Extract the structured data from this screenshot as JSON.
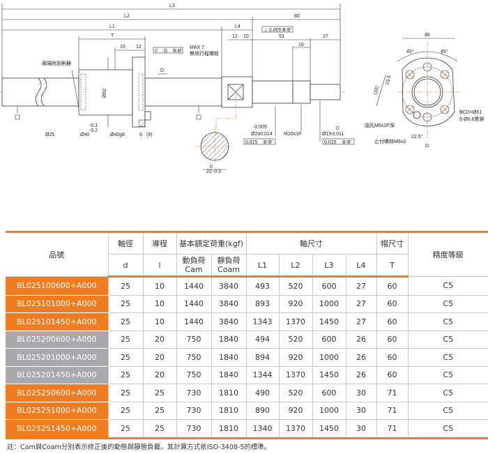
{
  "drawing": {
    "dims": {
      "L3": "L3",
      "L2": "L2",
      "L1": "L1",
      "L4": "L4",
      "T": "T",
      "d15": "15",
      "d12a": "12",
      "d12b": "12",
      "d10": "10",
      "d80": "80",
      "d53": "53",
      "d27": "27",
      "d16": "16",
      "d48": "48",
      "max7": "MAX 7",
      "D": "D",
      "phi62": "Ø62",
      "phi25": "Ø25",
      "phi40": "Ø40",
      "tol40": "-0.1",
      "tol40b": "-0.2",
      "phi40g6": "Ø40g6",
      "d6": "6",
      "d9": "(9)",
      "d22": "22",
      "tol22a": "0",
      "tol22b": "-0.3",
      "phi20": "Ø20",
      "tol20a": "-0.005",
      "tol20b": "-0.014",
      "m20": "M20x1P",
      "phi15": "Ø15",
      "tol15a": "0",
      "tol15b": "-0.011",
      "a45a": "45°",
      "a45b": "45°",
      "d32": "(32)",
      "d235": "23.5",
      "a225": "22.5°",
      "viewD": "D",
      "datum": "B"
    },
    "frames": {
      "g": "G",
      "bb": "B-B'",
      "perp": "0.005",
      "run1": "0.015",
      "run2": "0.015"
    },
    "notes": {
      "wiper": "兩端附刮刷器",
      "thread": "無效行程螺紋",
      "oil": "油孔M6x1P深",
      "setscrew": "止付螺絲M6x3",
      "bcd": "BCD=Ø51",
      "holes": "6-Ø6.6貫穿"
    },
    "colors": {
      "center_line": "#e8752a"
    }
  },
  "table": {
    "headers": {
      "part": "品號",
      "shaft_dia": "軸徑",
      "lead": "導程",
      "load": "基本額定荷重(kgf)",
      "shaft_dim": "軸尺寸",
      "nut_dim": "帽尺寸",
      "accuracy": "精度等級",
      "d": "d",
      "l": "l",
      "cam": "動負荷\nCam",
      "coam": "靜負荷\nCoam",
      "L1": "L1",
      "L2": "L2",
      "L3": "L3",
      "L4": "L4",
      "T": "T"
    },
    "rows": [
      {
        "part": "BL025100600+A000",
        "d": "25",
        "l": "10",
        "cam": "1440",
        "coam": "3840",
        "L1": "493",
        "L2": "520",
        "L3": "600",
        "L4": "27",
        "T": "60",
        "acc": "C5",
        "group": "orange"
      },
      {
        "part": "BL025101000+A000",
        "d": "25",
        "l": "10",
        "cam": "1440",
        "coam": "3840",
        "L1": "893",
        "L2": "920",
        "L3": "1000",
        "L4": "27",
        "T": "60",
        "acc": "C5",
        "group": "orange"
      },
      {
        "part": "BL025101450+A000",
        "d": "25",
        "l": "10",
        "cam": "1440",
        "coam": "3840",
        "L1": "1343",
        "L2": "1370",
        "L3": "1450",
        "L4": "27",
        "T": "60",
        "acc": "C5",
        "group": "orange"
      },
      {
        "part": "BL025200600+A000",
        "d": "25",
        "l": "20",
        "cam": "750",
        "coam": "1840",
        "L1": "494",
        "L2": "520",
        "L3": "600",
        "L4": "26",
        "T": "60",
        "acc": "C5",
        "group": "gray"
      },
      {
        "part": "BL025201000+A000",
        "d": "25",
        "l": "20",
        "cam": "750",
        "coam": "1840",
        "L1": "894",
        "L2": "920",
        "L3": "1000",
        "L4": "26",
        "T": "60",
        "acc": "C5",
        "group": "gray"
      },
      {
        "part": "BL025201450+A000",
        "d": "25",
        "l": "20",
        "cam": "750",
        "coam": "1840",
        "L1": "1344",
        "L2": "1370",
        "L3": "1450",
        "L4": "26",
        "T": "60",
        "acc": "C5",
        "group": "gray"
      },
      {
        "part": "BL025250600+A000",
        "d": "25",
        "l": "25",
        "cam": "730",
        "coam": "1810",
        "L1": "490",
        "L2": "520",
        "L3": "600",
        "L4": "30",
        "T": "71",
        "acc": "C5",
        "group": "orange"
      },
      {
        "part": "BL025251000+A000",
        "d": "25",
        "l": "25",
        "cam": "730",
        "coam": "1810",
        "L1": "890",
        "L2": "920",
        "L3": "1000",
        "L4": "30",
        "T": "71",
        "acc": "C5",
        "group": "orange"
      },
      {
        "part": "BL025251450+A000",
        "d": "25",
        "l": "25",
        "cam": "730",
        "coam": "1810",
        "L1": "1340",
        "L2": "1370",
        "L3": "1450",
        "L4": "30",
        "T": "71",
        "acc": "C5",
        "group": "orange"
      }
    ],
    "colors": {
      "orange": "#f07d22",
      "gray": "#a7a9ac"
    }
  },
  "note": "註：Cam與Coam分別表示修正後的動態與靜態負載，其計算方式依ISO-3408-5的標準。"
}
